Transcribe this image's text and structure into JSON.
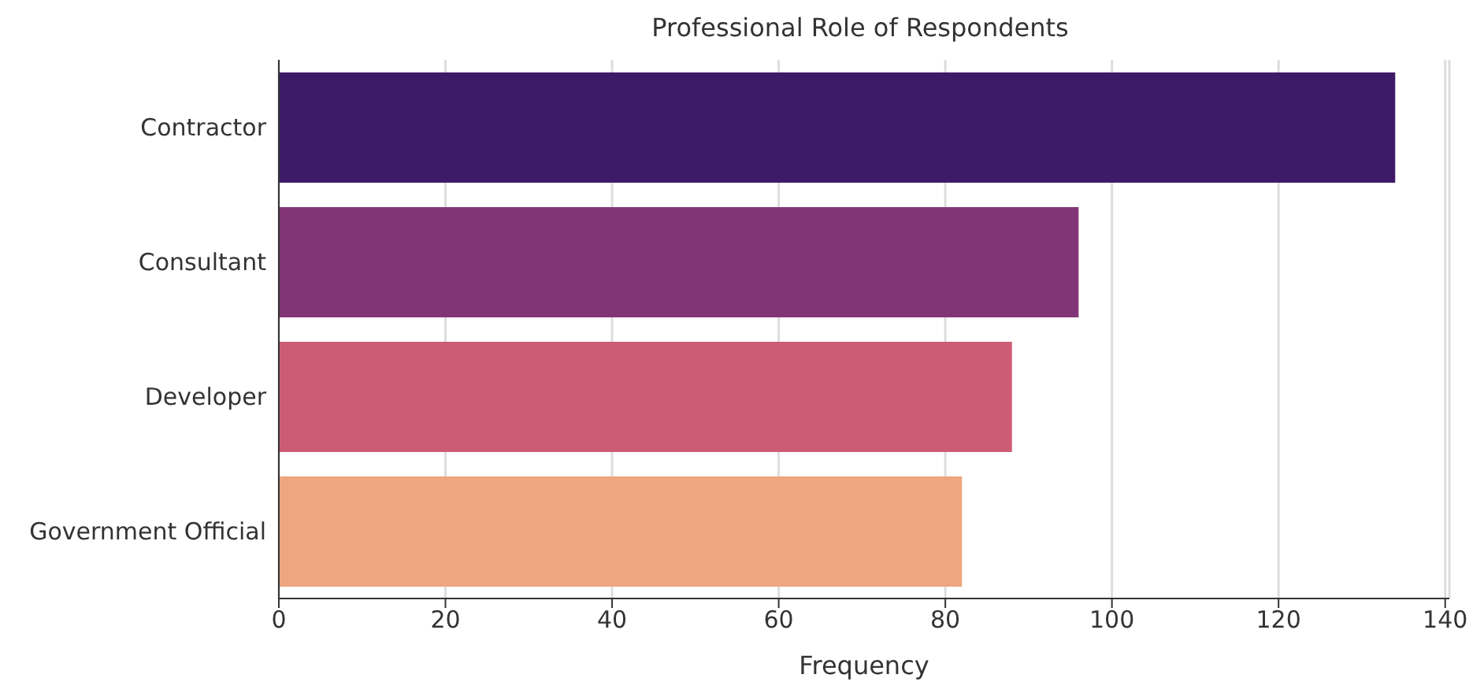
{
  "chart_data": {
    "type": "bar",
    "orientation": "horizontal",
    "title": "Professional Role of Respondents",
    "xlabel": "Frequency",
    "categories": [
      "Contractor",
      "Consultant",
      "Developer",
      "Government Official"
    ],
    "values": [
      134,
      96,
      88,
      82
    ],
    "colors": [
      "#3f1a66",
      "#823576",
      "#cc5c74",
      "#eda680"
    ],
    "xlim": [
      0,
      140.5
    ],
    "xticks": [
      0,
      20,
      40,
      60,
      80,
      100,
      120,
      140
    ],
    "grid": "x"
  }
}
